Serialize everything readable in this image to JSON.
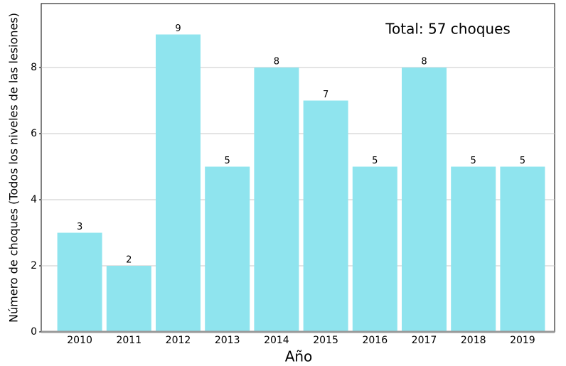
{
  "chart_data": {
    "type": "bar",
    "categories": [
      "2010",
      "2011",
      "2012",
      "2013",
      "2014",
      "2015",
      "2016",
      "2017",
      "2018",
      "2019"
    ],
    "values": [
      3,
      2,
      9,
      5,
      8,
      7,
      5,
      8,
      5,
      5
    ],
    "color": "#8fe4ee",
    "xlabel": "Año",
    "ylabel": "Número de choques (Todos los niveles de las lesiones)",
    "annotation": "Total: 57 choques",
    "ylim": [
      0,
      10
    ],
    "yticks": [
      0,
      2,
      4,
      6,
      8
    ],
    "grid": true
  }
}
